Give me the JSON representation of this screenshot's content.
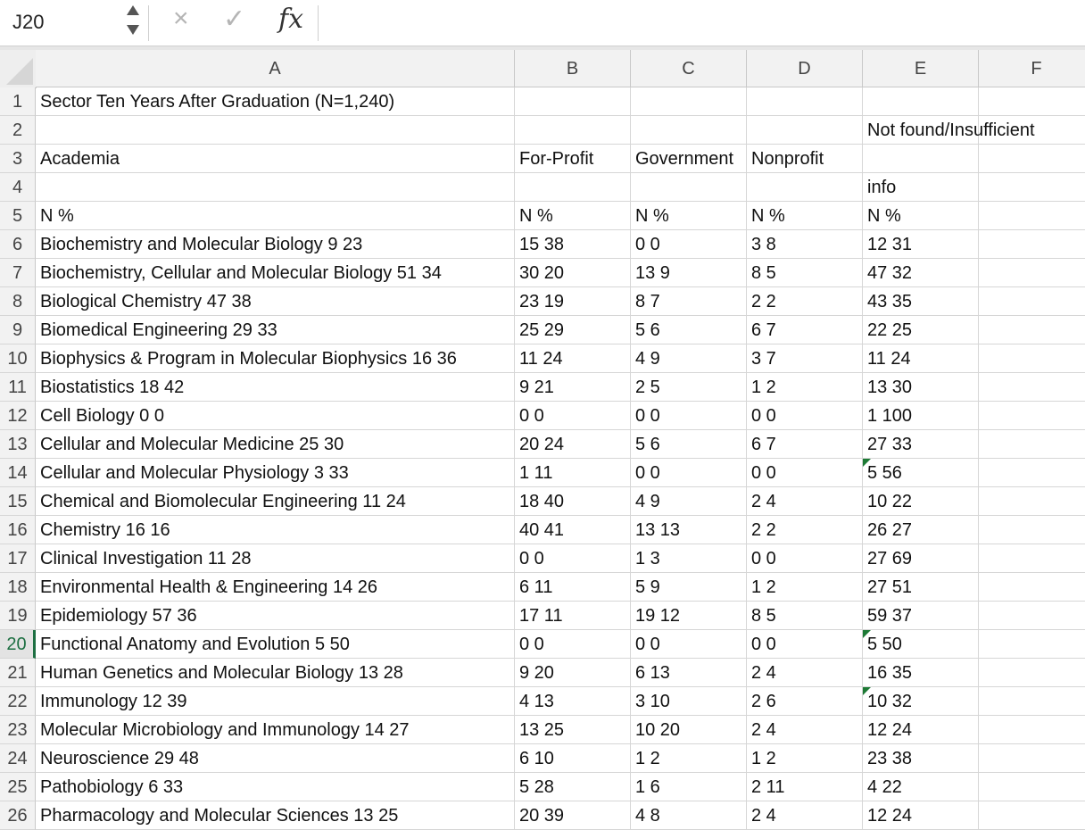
{
  "name_box": {
    "value": "J20"
  },
  "formula_bar": {
    "cancel_icon": "×",
    "confirm_icon": "✓",
    "fx_label": "fx",
    "content": ""
  },
  "columns": [
    "A",
    "B",
    "C",
    "D",
    "E",
    "F"
  ],
  "selected_row": 20,
  "rows": [
    {
      "n": "1",
      "cells": [
        "Sector Ten Years After Graduation (N=1,240)",
        "",
        "",
        "",
        "",
        ""
      ]
    },
    {
      "n": "2",
      "cells": [
        "",
        "",
        "",
        "",
        "Not found/Insufficient",
        ""
      ]
    },
    {
      "n": "3",
      "cells": [
        "Academia",
        "For-Profit",
        "Government",
        "Nonprofit",
        "",
        ""
      ]
    },
    {
      "n": "4",
      "cells": [
        "",
        "",
        "",
        "",
        "info",
        ""
      ]
    },
    {
      "n": "5",
      "cells": [
        "N  %",
        "N  %",
        "N  %",
        "N  %",
        "N  %",
        ""
      ]
    },
    {
      "n": "6",
      "cells": [
        "Biochemistry and Molecular Biology 9 23",
        "15 38",
        "0 0",
        "3 8",
        "12 31",
        ""
      ]
    },
    {
      "n": "7",
      "cells": [
        "Biochemistry, Cellular and Molecular Biology 51 34",
        "30 20",
        "13 9",
        "8 5",
        "47 32",
        ""
      ]
    },
    {
      "n": "8",
      "cells": [
        "Biological Chemistry 47 38",
        "23 19",
        "8 7",
        "2 2",
        "43 35",
        ""
      ]
    },
    {
      "n": "9",
      "cells": [
        "Biomedical Engineering 29 33",
        "25 29",
        "5 6",
        "6 7",
        "22 25",
        ""
      ]
    },
    {
      "n": "10",
      "cells": [
        "Biophysics & Program in Molecular Biophysics 16 36",
        "11 24",
        "4 9",
        "3 7",
        "11 24",
        ""
      ]
    },
    {
      "n": "11",
      "cells": [
        "Biostatistics 18 42",
        "9 21",
        "2 5",
        "1 2",
        "13 30",
        ""
      ]
    },
    {
      "n": "12",
      "cells": [
        "Cell Biology 0 0",
        "0 0",
        "0 0",
        "0 0",
        "1 100",
        ""
      ]
    },
    {
      "n": "13",
      "cells": [
        "Cellular and Molecular Medicine 25 30",
        "20 24",
        "5 6",
        "6 7",
        "27 33",
        ""
      ]
    },
    {
      "n": "14",
      "cells": [
        "Cellular and Molecular Physiology 3 33",
        "1 11",
        "0 0",
        "0 0",
        "5 56",
        ""
      ],
      "flag": true
    },
    {
      "n": "15",
      "cells": [
        "Chemical and Biomolecular Engineering 11 24",
        "18 40",
        "4 9",
        "2 4",
        "10 22",
        ""
      ]
    },
    {
      "n": "16",
      "cells": [
        "Chemistry 16 16",
        "40 41",
        "13 13",
        "2 2",
        "26 27",
        ""
      ]
    },
    {
      "n": "17",
      "cells": [
        "Clinical Investigation 11 28",
        "0 0",
        "1 3",
        "0 0",
        "27 69",
        ""
      ]
    },
    {
      "n": "18",
      "cells": [
        "Environmental Health & Engineering 14 26",
        "6 11",
        "5 9",
        "1 2",
        "27 51",
        ""
      ]
    },
    {
      "n": "19",
      "cells": [
        "Epidemiology 57 36",
        "17 11",
        "19 12",
        "8 5",
        "59 37",
        ""
      ]
    },
    {
      "n": "20",
      "cells": [
        "Functional Anatomy and Evolution 5 50",
        "0 0",
        "0 0",
        "0 0",
        "5 50",
        ""
      ],
      "flag": true
    },
    {
      "n": "21",
      "cells": [
        "Human Genetics and Molecular Biology 13 28",
        "9 20",
        "6 13",
        "2 4",
        "16 35",
        ""
      ]
    },
    {
      "n": "22",
      "cells": [
        "Immunology 12 39",
        "4 13",
        "3 10",
        "2 6",
        "10 32",
        ""
      ],
      "flag": true
    },
    {
      "n": "23",
      "cells": [
        "Molecular Microbiology and Immunology 14 27",
        "13 25",
        "10 20",
        "2 4",
        "12 24",
        ""
      ]
    },
    {
      "n": "24",
      "cells": [
        "Neuroscience 29 48",
        "6 10",
        "1 2",
        "1 2",
        "23 38",
        ""
      ]
    },
    {
      "n": "25",
      "cells": [
        "Pathobiology 6 33",
        "5 28",
        "1 6",
        "2 11",
        "4 22",
        ""
      ]
    },
    {
      "n": "26",
      "cells": [
        "Pharmacology and Molecular Sciences 13 25",
        "20 39",
        "4 8",
        "2 4",
        "12 24",
        ""
      ]
    }
  ]
}
